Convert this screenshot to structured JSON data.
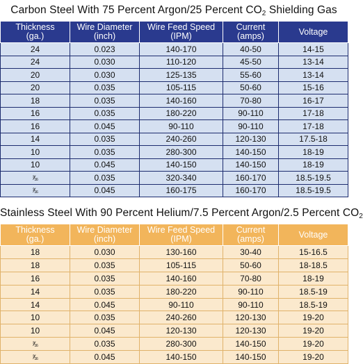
{
  "carbon": {
    "title": "Carbon Steel With 75 Percent Argon/25 Percent CO",
    "title_sub": "2",
    "title_tail": " Shielding Gas",
    "headers": [
      [
        "Thickness",
        "(ga.)"
      ],
      [
        "Wire Diameter",
        "(inch)"
      ],
      [
        "Wire Feed Speed",
        "(IPM)"
      ],
      [
        "Current",
        "(amps)"
      ],
      [
        "Voltage",
        ""
      ]
    ],
    "rows": [
      [
        "24",
        "0.023",
        "140-170",
        "40-50",
        "14-15"
      ],
      [
        "24",
        "0.030",
        "110-120",
        "45-50",
        "13-14"
      ],
      [
        "20",
        "0.030",
        "125-135",
        "55-60",
        "13-14"
      ],
      [
        "20",
        "0.035",
        "105-115",
        "50-60",
        "15-16"
      ],
      [
        "18",
        "0.035",
        "140-160",
        "70-80",
        "16-17"
      ],
      [
        "16",
        "0.035",
        "180-220",
        "90-110",
        "17-18"
      ],
      [
        "16",
        "0.045",
        "90-110",
        "90-110",
        "17-18"
      ],
      [
        "14",
        "0.035",
        "240-260",
        "120-130",
        "17.5-18"
      ],
      [
        "10",
        "0.035",
        "280-300",
        "140-150",
        "18-19"
      ],
      [
        "10",
        "0.045",
        "140-150",
        "140-150",
        "18-19"
      ],
      [
        "³⁄₁₆",
        "0.035",
        "320-340",
        "160-170",
        "18.5-19.5"
      ],
      [
        "³⁄₁₆",
        "0.045",
        "160-175",
        "160-170",
        "18.5-19.5"
      ]
    ]
  },
  "stainless": {
    "title": "Stainless Steel With 90 Percent Helium/7.5 Percent Argon/2.5 Percent CO",
    "title_sub": "2",
    "headers": [
      [
        "Thickness",
        "(ga.)"
      ],
      [
        "Wire Diameter",
        "(inch)"
      ],
      [
        "Wire Feed Speed",
        "(IPM)"
      ],
      [
        "Current",
        "(amps)"
      ],
      [
        "Voltage",
        ""
      ]
    ],
    "rows": [
      [
        "18",
        "0.030",
        "130-160",
        "30-40",
        "15-16.5"
      ],
      [
        "18",
        "0.035",
        "105-115",
        "50-60",
        "18-18.5"
      ],
      [
        "16",
        "0.035",
        "140-160",
        "70-80",
        "18-19"
      ],
      [
        "14",
        "0.035",
        "180-220",
        "90-110",
        "18.5-19"
      ],
      [
        "14",
        "0.045",
        "90-110",
        "90-110",
        "18.5-19"
      ],
      [
        "10",
        "0.035",
        "240-260",
        "120-130",
        "19-20"
      ],
      [
        "10",
        "0.045",
        "120-130",
        "120-130",
        "19-20"
      ],
      [
        "³⁄₁₆",
        "0.035",
        "280-300",
        "140-150",
        "19-20"
      ],
      [
        "³⁄₁₆",
        "0.045",
        "140-150",
        "140-150",
        "19-20"
      ]
    ]
  }
}
